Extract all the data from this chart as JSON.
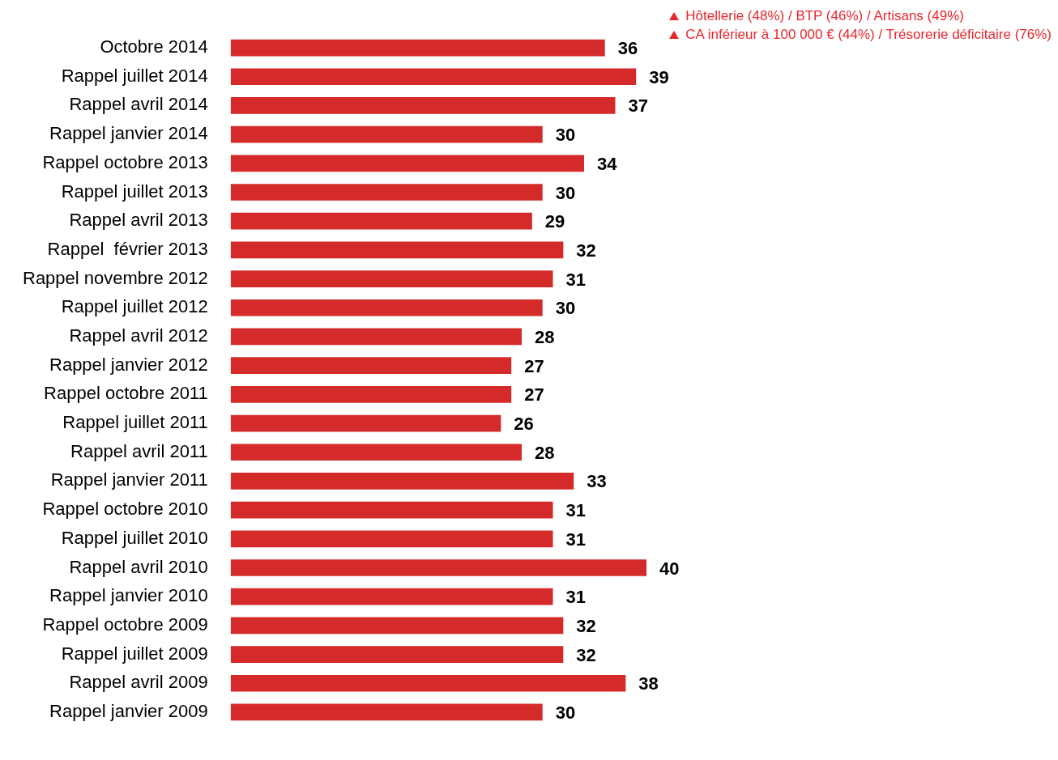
{
  "chart_data": {
    "type": "bar",
    "orientation": "horizontal",
    "categories": [
      "Octobre 2014",
      "Rappel juillet 2014",
      "Rappel avril 2014",
      "Rappel janvier 2014",
      "Rappel octobre 2013",
      "Rappel juillet 2013",
      "Rappel avril 2013",
      "Rappel  février 2013",
      "Rappel novembre 2012",
      "Rappel juillet 2012",
      "Rappel avril 2012",
      "Rappel janvier 2012",
      "Rappel octobre 2011",
      "Rappel juillet 2011",
      "Rappel avril 2011",
      "Rappel janvier 2011",
      "Rappel octobre 2010",
      "Rappel juillet 2010",
      "Rappel avril 2010",
      "Rappel janvier 2010",
      "Rappel octobre 2009",
      "Rappel juillet 2009",
      "Rappel avril 2009",
      "Rappel janvier 2009"
    ],
    "values": [
      36,
      39,
      37,
      30,
      34,
      30,
      29,
      32,
      31,
      30,
      28,
      27,
      27,
      26,
      28,
      33,
      31,
      31,
      40,
      31,
      32,
      32,
      38,
      30
    ],
    "color": "#d42a2a",
    "data_labels": true,
    "grid": false,
    "legend": false,
    "tick_labels": "y",
    "annotations": [
      "Hôtellerie (48%) / BTP (46%) / Artisans (49%)",
      "CA inférieur à 100 000 € (44%) / Trésorerie déficitaire (76%)"
    ]
  }
}
